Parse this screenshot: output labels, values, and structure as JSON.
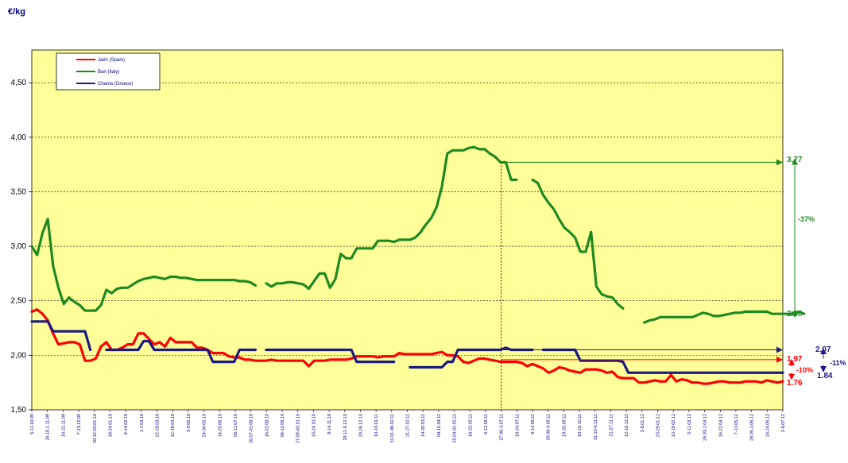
{
  "chart_data": {
    "type": "line",
    "ylabel": "€/kg",
    "ylim": [
      1.5,
      4.8
    ],
    "yticks": [
      "1,50",
      "2,00",
      "2,50",
      "3,00",
      "3,50",
      "4,00",
      "4,50"
    ],
    "grid": true,
    "legend_position": "top-left",
    "x_labels": [
      "5-11.10.09",
      "26.10-1.11.09",
      "16-22.11.09",
      "7-13.12.09",
      "28.12-03.01.10",
      "18-24.01.10",
      "8-14.02.10",
      "1-7.03.10",
      "22-28.03.10",
      "12-18.04.10",
      "3-9.05.10",
      "24-30.05.10",
      "14-20.06.10",
      "05-11.07.10",
      "26.07-01.08.10",
      "16-22.08.10",
      "06-12.09.10",
      "27.09-03.10.10",
      "18-24.10.10",
      "8-14.11.10",
      "29.11-5.12.10",
      "20-26.12.10",
      "10-16.01.11",
      "31.01-06.02.11",
      "21-27.02.11",
      "14-20.03.11",
      "04-10.04.11",
      "25.04-01.05.11",
      "16-22.05.11",
      "6-12.06.11",
      "27.06-3.07.11",
      "18-24.07.11",
      "8-14.08.11",
      "29.08-4.09.11",
      "19-25.09.11",
      "10-16.10.11",
      "31.10-6.11.11",
      "21-27.11.11",
      "12-18.12.11",
      "2-8.01.12",
      "23-29.01.12",
      "13-19.02.12",
      "5-11.03.12",
      "26.03-1.04.12",
      "16-22.04.12",
      "7-13.05.12",
      "28.05-3.06.12",
      "18-24.06.12",
      "2-8.07.12"
    ],
    "series": [
      {
        "name": "Jaén (Spain)",
        "color": "#ff0000",
        "values": [
          2.4,
          2.42,
          2.38,
          2.32,
          2.2,
          2.1,
          2.11,
          2.12,
          2.12,
          2.1,
          1.95,
          1.95,
          1.97,
          2.08,
          2.12,
          2.05,
          2.05,
          2.07,
          2.1,
          2.1,
          2.2,
          2.2,
          2.15,
          2.1,
          2.12,
          2.08,
          2.16,
          2.12,
          2.12,
          2.12,
          2.12,
          2.07,
          2.07,
          2.05,
          2.02,
          2.02,
          2.02,
          1.99,
          1.98,
          1.98,
          1.96,
          1.96,
          1.95,
          1.95,
          1.95,
          1.96,
          1.95,
          1.95,
          1.95,
          1.95,
          1.95,
          1.95,
          1.9,
          1.95,
          1.95,
          1.95,
          1.96,
          1.96,
          1.96,
          1.96,
          1.97,
          1.99,
          1.99,
          1.99,
          1.99,
          1.98,
          1.99,
          1.99,
          1.99,
          2.02,
          2.01,
          2.01,
          2.01,
          2.01,
          2.01,
          2.01,
          2.02,
          2.03,
          2.0,
          2.0,
          1.99,
          1.94,
          1.93,
          1.95,
          1.97,
          1.97,
          1.96,
          1.95,
          1.94,
          1.94,
          1.94,
          1.94,
          1.93,
          1.9,
          1.92,
          1.9,
          1.88,
          1.84,
          1.86,
          1.89,
          1.88,
          1.86,
          1.85,
          1.84,
          1.87,
          1.87,
          1.87,
          1.86,
          1.84,
          1.85,
          1.8,
          1.79,
          1.79,
          1.79,
          1.75,
          1.75,
          1.76,
          1.77,
          1.76,
          1.76,
          1.82,
          1.76,
          1.78,
          1.77,
          1.75,
          1.75,
          1.74,
          1.74,
          1.75,
          1.76,
          1.76,
          1.75,
          1.75,
          1.75,
          1.76,
          1.76,
          1.76,
          1.75,
          1.77,
          1.76,
          1.75,
          1.76
        ]
      },
      {
        "name": "Bari (Italy)",
        "color": "#1f8a1f",
        "values": [
          3.0,
          2.92,
          3.12,
          3.25,
          2.82,
          2.62,
          2.47,
          2.53,
          2.49,
          2.46,
          2.41,
          2.41,
          2.41,
          2.46,
          2.6,
          2.57,
          2.61,
          2.62,
          2.62,
          2.65,
          2.68,
          2.7,
          2.71,
          2.72,
          2.71,
          2.7,
          2.72,
          2.72,
          2.71,
          2.71,
          2.7,
          2.69,
          2.69,
          2.69,
          2.69,
          2.69,
          2.69,
          2.69,
          2.69,
          2.68,
          2.68,
          2.67,
          2.64,
          null,
          2.66,
          2.63,
          2.66,
          2.66,
          2.67,
          2.67,
          2.66,
          2.65,
          2.61,
          2.68,
          2.75,
          2.75,
          2.62,
          2.7,
          2.93,
          2.89,
          2.89,
          2.98,
          2.98,
          2.98,
          2.98,
          3.05,
          3.05,
          3.05,
          3.04,
          3.06,
          3.06,
          3.06,
          3.08,
          3.13,
          3.2,
          3.26,
          3.36,
          3.55,
          3.85,
          3.88,
          3.88,
          3.88,
          3.9,
          3.91,
          3.89,
          3.89,
          3.85,
          3.82,
          3.77,
          3.77,
          3.61,
          3.61,
          null,
          null,
          3.61,
          3.58,
          3.47,
          3.4,
          3.34,
          3.25,
          3.17,
          3.13,
          3.08,
          2.95,
          2.95,
          3.13,
          2.63,
          2.56,
          2.54,
          2.53,
          2.47,
          2.43,
          null,
          null,
          null,
          2.3,
          2.32,
          2.33,
          2.35,
          2.35,
          2.35,
          2.35,
          2.35,
          2.35,
          2.35,
          2.37,
          2.39,
          2.38,
          2.36,
          2.36,
          2.37,
          2.38,
          2.39,
          2.39,
          2.4,
          2.4,
          2.4,
          2.4,
          2.4,
          2.38,
          2.38,
          2.38,
          2.38,
          2.38,
          2.4,
          2.38
        ]
      },
      {
        "name": "Chania (Greece)",
        "color": "#1a1a80",
        "values": [
          2.31,
          2.31,
          2.31,
          2.31,
          2.22,
          2.22,
          2.22,
          2.22,
          2.22,
          2.22,
          2.22,
          2.05,
          null,
          null,
          2.05,
          2.05,
          2.05,
          2.05,
          2.05,
          2.05,
          2.05,
          2.13,
          2.13,
          2.05,
          2.05,
          2.05,
          2.05,
          2.05,
          2.05,
          2.05,
          2.05,
          2.05,
          2.05,
          2.05,
          1.94,
          1.94,
          1.94,
          1.94,
          1.94,
          2.05,
          2.05,
          2.05,
          2.05,
          null,
          2.05,
          2.05,
          2.05,
          2.05,
          2.05,
          2.05,
          2.05,
          2.05,
          2.05,
          2.05,
          2.05,
          2.05,
          2.05,
          2.05,
          2.05,
          2.05,
          2.05,
          1.94,
          1.94,
          1.94,
          1.94,
          1.94,
          1.94,
          1.94,
          1.94,
          null,
          null,
          1.89,
          1.89,
          1.89,
          1.89,
          1.89,
          1.89,
          1.89,
          1.94,
          1.94,
          2.05,
          2.05,
          2.05,
          2.05,
          2.05,
          2.05,
          2.05,
          2.05,
          2.05,
          2.07,
          2.05,
          2.05,
          2.05,
          2.05,
          2.05,
          null,
          2.05,
          2.05,
          2.05,
          2.05,
          2.05,
          2.05,
          2.05,
          1.95,
          1.95,
          1.95,
          1.95,
          1.95,
          1.95,
          1.95,
          1.95,
          1.94,
          1.84,
          1.84,
          1.84,
          1.84,
          1.84,
          1.84,
          1.84,
          1.84,
          1.84,
          1.84,
          1.84,
          1.84,
          1.84,
          1.84,
          1.84,
          1.84,
          1.84,
          1.84,
          1.84,
          1.84,
          1.84,
          1.84,
          1.84,
          1.84,
          1.84,
          1.84,
          1.84,
          1.84,
          1.84,
          1.84
        ]
      }
    ],
    "reference_line_x_label": "27.06-3.07.11",
    "annotations": {
      "bari_peak": "3.77",
      "bari_now": "2.38",
      "bari_change": "-37%",
      "chania_peak": "2.07",
      "chania_now": "1.84",
      "chania_change": "-11%",
      "jaen_peak": "1.97",
      "jaen_now": "1.76",
      "jaen_change": "-10%"
    },
    "colors": {
      "plot_bg": "#ffff99",
      "jaen": "#ff0000",
      "bari": "#1f8a1f",
      "chania": "#1a1a80",
      "reference_line": "#800000"
    }
  }
}
